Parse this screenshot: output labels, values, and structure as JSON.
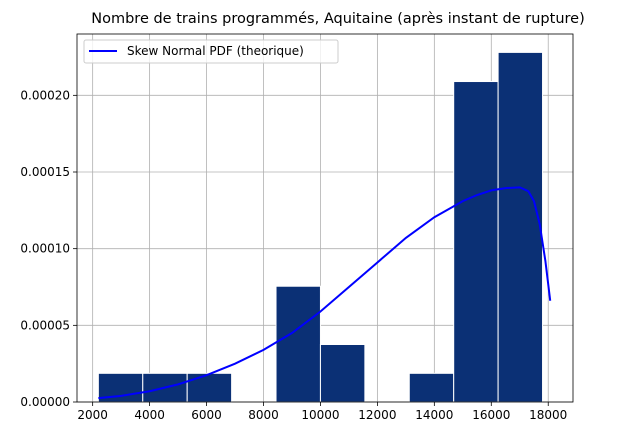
{
  "chart_data": {
    "type": "bar",
    "title": "Nombre de trains programmés, Aquitaine (après instant de rupture)",
    "xlabel": "",
    "ylabel": "",
    "xlim": [
      1450,
      18870
    ],
    "ylim": [
      0,
      0.00024
    ],
    "x_ticks": [
      2000,
      4000,
      6000,
      8000,
      10000,
      12000,
      14000,
      16000,
      18000
    ],
    "x_tick_labels": [
      "2000",
      "4000",
      "6000",
      "8000",
      "10000",
      "12000",
      "14000",
      "16000",
      "18000"
    ],
    "y_ticks": [
      0,
      5e-05,
      0.0001,
      0.00015,
      0.0002
    ],
    "y_tick_labels": [
      "0.00000",
      "0.00005",
      "0.00010",
      "0.00015",
      "0.00020"
    ],
    "grid": true,
    "histogram": {
      "bin_edges": [
        2200,
        3760,
        5320,
        6880,
        8440,
        10000,
        11560,
        13120,
        14680,
        16240,
        17800
      ],
      "densities": [
        1.87e-05,
        1.87e-05,
        1.87e-05,
        0,
        7.55e-05,
        3.75e-05,
        0,
        1.87e-05,
        0.000209,
        0.000228
      ],
      "color": "#0b3075",
      "edge_color": "#ffffff"
    },
    "series": [
      {
        "name": "Skew Normal PDF (theorique)",
        "kind": "line",
        "color": "#0000ff",
        "x": [
          2200,
          3000,
          4000,
          5000,
          6000,
          7000,
          8000,
          9000,
          10000,
          11000,
          12000,
          13000,
          14000,
          15000,
          15500,
          16000,
          16500,
          17000,
          17300,
          17500,
          17700,
          17900,
          18070
        ],
        "y": [
          2.5e-06,
          4e-06,
          7e-06,
          1.15e-05,
          1.75e-05,
          2.5e-05,
          3.4e-05,
          4.5e-05,
          5.9e-05,
          7.5e-05,
          9.1e-05,
          0.000107,
          0.0001205,
          0.000131,
          0.000135,
          0.000138,
          0.0001395,
          0.00014,
          0.0001375,
          0.000131,
          0.000116,
          9.2e-05,
          6.6e-05
        ]
      }
    ],
    "legend": {
      "position": "top-left",
      "entries": [
        "Skew Normal PDF (theorique)"
      ]
    }
  }
}
